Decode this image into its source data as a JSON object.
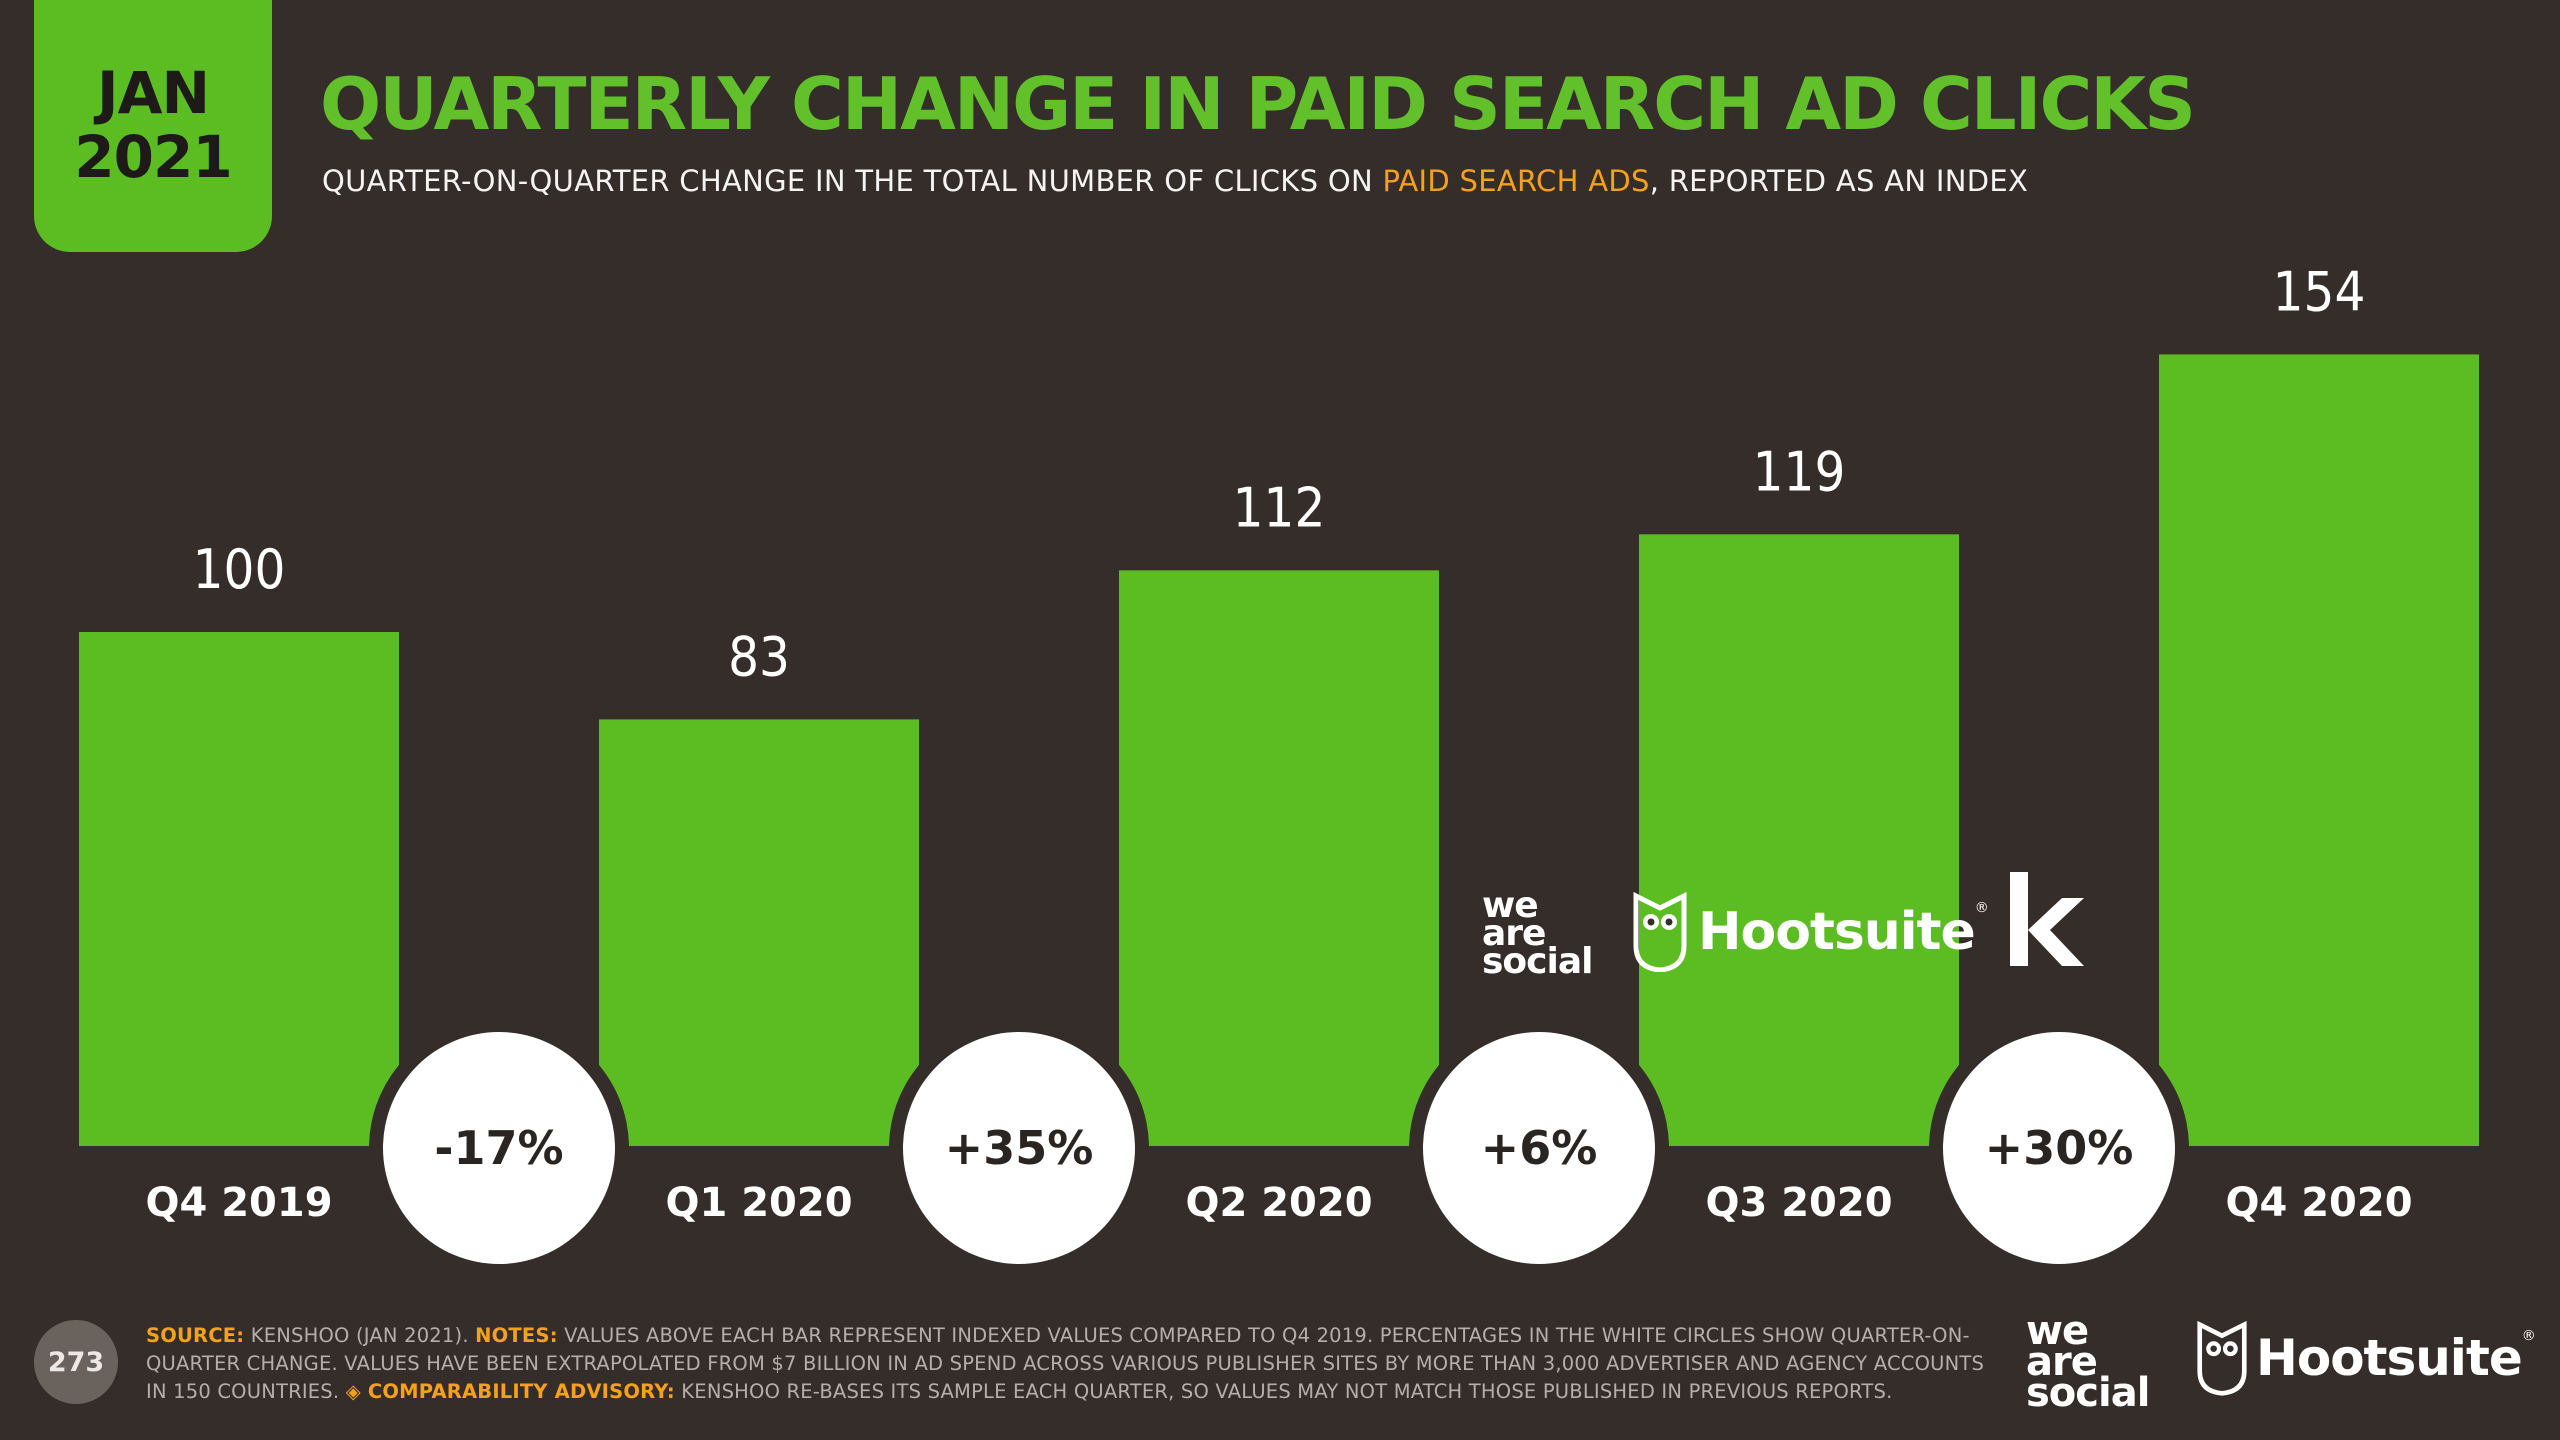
{
  "badge": {
    "month": "JAN",
    "year": "2021"
  },
  "header": {
    "title": "QUARTERLY CHANGE IN PAID SEARCH AD CLICKS",
    "subtitle_before": "QUARTER-ON-QUARTER CHANGE IN THE TOTAL NUMBER OF CLICKS ON ",
    "subtitle_highlight": "PAID SEARCH ADS",
    "subtitle_after": ", REPORTED AS AN INDEX"
  },
  "chart_data": {
    "type": "bar",
    "categories": [
      "Q4 2019",
      "Q1 2020",
      "Q2 2020",
      "Q3 2020",
      "Q4 2020"
    ],
    "values": [
      100,
      83,
      112,
      119,
      154
    ],
    "changes": [
      "-17%",
      "+35%",
      "+6%",
      "+30%"
    ],
    "title": "QUARTERLY CHANGE IN PAID SEARCH AD CLICKS",
    "ylim": [
      0,
      154
    ],
    "grid": false,
    "colors": {
      "bar": "#5cbd22",
      "background": "#342d29",
      "circle": "#ffffff"
    }
  },
  "logos": {
    "we_are_social": [
      "we",
      "are",
      "social"
    ],
    "hootsuite": "Hootsuite",
    "registered": "®",
    "kenshoo": "k"
  },
  "footer": {
    "page_number": "273",
    "source_label": "SOURCE:",
    "source_text": " KENSHOO (JAN 2021). ",
    "notes_label": "NOTES:",
    "notes_text": " VALUES ABOVE EACH BAR REPRESENT INDEXED VALUES COMPARED TO Q4 2019. PERCENTAGES IN THE WHITE CIRCLES SHOW QUARTER-ON-QUARTER CHANGE. VALUES HAVE BEEN EXTRAPOLATED FROM $7 BILLION IN AD SPEND ACROSS VARIOUS PUBLISHER SITES BY MORE THAN 3,000 ADVERTISER AND AGENCY ACCOUNTS IN 150 COUNTRIES. ",
    "advisory_label": "◈ COMPARABILITY ADVISORY:",
    "advisory_text": " KENSHOO RE-BASES ITS SAMPLE EACH QUARTER, SO VALUES MAY NOT MATCH THOSE PUBLISHED IN PREVIOUS REPORTS."
  }
}
